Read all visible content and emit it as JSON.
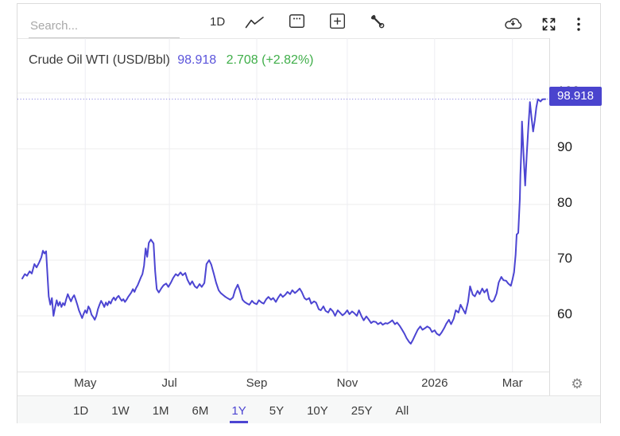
{
  "header": {
    "search_placeholder": "Search...",
    "interval_label": "1D",
    "icons": [
      "line-chart-icon",
      "calendar-icon",
      "plus-square-icon",
      "wrench-icon",
      "cloud-download-icon",
      "expand-icon",
      "kebab-menu-icon"
    ]
  },
  "title": {
    "instrument": "Crude Oil WTI (USD/Bbl)",
    "price": "98.918",
    "change": "2.708 (+2.82%)"
  },
  "price_badge": "98.918",
  "axis_icons": {
    "gear": "⚙"
  },
  "colors": {
    "accent": "#4c45d2",
    "price_text": "#5b54db",
    "change_green": "#3fae49",
    "badge_bg": "#4a44ce",
    "grid_h": "#ededed",
    "grid_v": "#ededf2",
    "dotted_price": "#7b74dd"
  },
  "ranges": {
    "items": [
      "1D",
      "1W",
      "1M",
      "6M",
      "1Y",
      "5Y",
      "10Y",
      "25Y",
      "All"
    ],
    "selected": "1Y"
  },
  "chart_data": {
    "type": "line",
    "title": "Crude Oil WTI (USD/Bbl)",
    "symbol": "Crude Oil WTI",
    "unit": "USD/Bbl",
    "last_price": 98.918,
    "change": 2.708,
    "change_pct": "+2.82%",
    "x_range": [
      "Apr 2025",
      "Mar 2026"
    ],
    "ylim": [
      50,
      110
    ],
    "grid": true,
    "legend": false,
    "y_ticks": [
      60,
      70,
      80,
      90,
      100
    ],
    "x_ticks": [
      {
        "label": "May",
        "t": 0.128
      },
      {
        "label": "Jul",
        "t": 0.287
      },
      {
        "label": "Sep",
        "t": 0.452
      },
      {
        "label": "Nov",
        "t": 0.623
      },
      {
        "label": "2026",
        "t": 0.788
      },
      {
        "label": "Mar",
        "t": 0.935
      }
    ],
    "series": [
      {
        "name": "Crude Oil WTI (USD/Bbl)",
        "points": [
          [
            0.009,
            66.7
          ],
          [
            0.014,
            67.5
          ],
          [
            0.018,
            67.2
          ],
          [
            0.023,
            68.0
          ],
          [
            0.027,
            67.6
          ],
          [
            0.032,
            69.3
          ],
          [
            0.036,
            68.7
          ],
          [
            0.041,
            69.6
          ],
          [
            0.045,
            70.5
          ],
          [
            0.048,
            71.7
          ],
          [
            0.051,
            71.2
          ],
          [
            0.054,
            71.6
          ],
          [
            0.059,
            63.5
          ],
          [
            0.062,
            62.0
          ],
          [
            0.065,
            63.2
          ],
          [
            0.068,
            60.0
          ],
          [
            0.071,
            61.5
          ],
          [
            0.074,
            62.8
          ],
          [
            0.077,
            61.8
          ],
          [
            0.08,
            62.5
          ],
          [
            0.083,
            61.6
          ],
          [
            0.086,
            62.3
          ],
          [
            0.089,
            61.9
          ],
          [
            0.092,
            63.0
          ],
          [
            0.095,
            63.9
          ],
          [
            0.098,
            63.2
          ],
          [
            0.101,
            62.6
          ],
          [
            0.104,
            63.3
          ],
          [
            0.107,
            63.7
          ],
          [
            0.11,
            62.9
          ],
          [
            0.113,
            62.0
          ],
          [
            0.116,
            61.0
          ],
          [
            0.119,
            60.3
          ],
          [
            0.122,
            59.6
          ],
          [
            0.125,
            60.4
          ],
          [
            0.128,
            61.0
          ],
          [
            0.131,
            60.5
          ],
          [
            0.134,
            61.7
          ],
          [
            0.137,
            61.2
          ],
          [
            0.14,
            60.2
          ],
          [
            0.143,
            59.8
          ],
          [
            0.146,
            59.3
          ],
          [
            0.149,
            60.0
          ],
          [
            0.152,
            61.2
          ],
          [
            0.155,
            62.0
          ],
          [
            0.158,
            62.7
          ],
          [
            0.161,
            62.2
          ],
          [
            0.164,
            61.6
          ],
          [
            0.167,
            62.4
          ],
          [
            0.17,
            61.9
          ],
          [
            0.173,
            62.6
          ],
          [
            0.176,
            62.2
          ],
          [
            0.179,
            62.9
          ],
          [
            0.182,
            63.3
          ],
          [
            0.185,
            62.8
          ],
          [
            0.188,
            63.3
          ],
          [
            0.191,
            63.6
          ],
          [
            0.194,
            63.1
          ],
          [
            0.197,
            62.7
          ],
          [
            0.2,
            63.0
          ],
          [
            0.203,
            62.5
          ],
          [
            0.206,
            62.9
          ],
          [
            0.209,
            63.4
          ],
          [
            0.212,
            63.8
          ],
          [
            0.215,
            64.2
          ],
          [
            0.218,
            64.8
          ],
          [
            0.221,
            64.3
          ],
          [
            0.224,
            65.0
          ],
          [
            0.227,
            65.5
          ],
          [
            0.23,
            66.2
          ],
          [
            0.233,
            66.9
          ],
          [
            0.236,
            67.5
          ],
          [
            0.239,
            69.0
          ],
          [
            0.242,
            72.1
          ],
          [
            0.245,
            70.6
          ],
          [
            0.248,
            73.1
          ],
          [
            0.252,
            73.7
          ],
          [
            0.257,
            73.0
          ],
          [
            0.26,
            68.0
          ],
          [
            0.263,
            64.8
          ],
          [
            0.267,
            64.2
          ],
          [
            0.272,
            65.0
          ],
          [
            0.276,
            65.5
          ],
          [
            0.281,
            65.8
          ],
          [
            0.285,
            65.2
          ],
          [
            0.29,
            66.0
          ],
          [
            0.294,
            66.8
          ],
          [
            0.299,
            67.5
          ],
          [
            0.303,
            67.2
          ],
          [
            0.308,
            67.8
          ],
          [
            0.312,
            67.3
          ],
          [
            0.317,
            67.7
          ],
          [
            0.321,
            66.5
          ],
          [
            0.326,
            65.6
          ],
          [
            0.33,
            66.2
          ],
          [
            0.335,
            65.3
          ],
          [
            0.339,
            65.0
          ],
          [
            0.344,
            65.7
          ],
          [
            0.348,
            65.2
          ],
          [
            0.353,
            65.9
          ],
          [
            0.357,
            69.3
          ],
          [
            0.362,
            70.0
          ],
          [
            0.366,
            69.2
          ],
          [
            0.371,
            67.5
          ],
          [
            0.375,
            66.0
          ],
          [
            0.38,
            64.6
          ],
          [
            0.384,
            64.1
          ],
          [
            0.389,
            63.7
          ],
          [
            0.393,
            63.4
          ],
          [
            0.398,
            63.1
          ],
          [
            0.402,
            62.9
          ],
          [
            0.407,
            63.3
          ],
          [
            0.411,
            64.6
          ],
          [
            0.416,
            65.6
          ],
          [
            0.42,
            64.6
          ],
          [
            0.425,
            62.9
          ],
          [
            0.429,
            62.5
          ],
          [
            0.434,
            62.2
          ],
          [
            0.438,
            62.0
          ],
          [
            0.443,
            62.7
          ],
          [
            0.447,
            62.3
          ],
          [
            0.452,
            62.1
          ],
          [
            0.456,
            62.8
          ],
          [
            0.461,
            62.4
          ],
          [
            0.465,
            62.2
          ],
          [
            0.47,
            63.0
          ],
          [
            0.474,
            63.4
          ],
          [
            0.479,
            62.9
          ],
          [
            0.483,
            63.2
          ],
          [
            0.488,
            62.5
          ],
          [
            0.492,
            63.2
          ],
          [
            0.497,
            63.9
          ],
          [
            0.501,
            63.4
          ],
          [
            0.506,
            63.8
          ],
          [
            0.51,
            64.3
          ],
          [
            0.515,
            63.9
          ],
          [
            0.519,
            64.6
          ],
          [
            0.524,
            64.1
          ],
          [
            0.528,
            64.4
          ],
          [
            0.533,
            64.9
          ],
          [
            0.537,
            64.3
          ],
          [
            0.542,
            63.2
          ],
          [
            0.546,
            62.9
          ],
          [
            0.551,
            63.2
          ],
          [
            0.555,
            62.2
          ],
          [
            0.56,
            62.6
          ],
          [
            0.564,
            62.4
          ],
          [
            0.569,
            61.2
          ],
          [
            0.573,
            61.0
          ],
          [
            0.578,
            61.7
          ],
          [
            0.582,
            60.9
          ],
          [
            0.587,
            60.6
          ],
          [
            0.591,
            61.3
          ],
          [
            0.596,
            60.8
          ],
          [
            0.6,
            60.0
          ],
          [
            0.605,
            61.0
          ],
          [
            0.609,
            60.6
          ],
          [
            0.614,
            60.1
          ],
          [
            0.618,
            60.4
          ],
          [
            0.623,
            61.0
          ],
          [
            0.627,
            60.3
          ],
          [
            0.632,
            60.8
          ],
          [
            0.636,
            60.5
          ],
          [
            0.641,
            60.0
          ],
          [
            0.645,
            61.0
          ],
          [
            0.65,
            59.9
          ],
          [
            0.654,
            59.2
          ],
          [
            0.659,
            59.9
          ],
          [
            0.663,
            59.4
          ],
          [
            0.668,
            58.7
          ],
          [
            0.672,
            59.0
          ],
          [
            0.677,
            58.9
          ],
          [
            0.681,
            58.5
          ],
          [
            0.686,
            58.8
          ],
          [
            0.69,
            58.4
          ],
          [
            0.695,
            58.7
          ],
          [
            0.699,
            58.6
          ],
          [
            0.704,
            58.9
          ],
          [
            0.708,
            59.2
          ],
          [
            0.713,
            58.5
          ],
          [
            0.717,
            58.8
          ],
          [
            0.722,
            58.2
          ],
          [
            0.726,
            57.6
          ],
          [
            0.731,
            56.8
          ],
          [
            0.735,
            56.0
          ],
          [
            0.74,
            55.3
          ],
          [
            0.743,
            55.0
          ],
          [
            0.747,
            55.7
          ],
          [
            0.752,
            56.7
          ],
          [
            0.756,
            57.5
          ],
          [
            0.761,
            58.1
          ],
          [
            0.765,
            57.5
          ],
          [
            0.77,
            57.8
          ],
          [
            0.774,
            58.1
          ],
          [
            0.779,
            57.8
          ],
          [
            0.783,
            57.1
          ],
          [
            0.788,
            57.4
          ],
          [
            0.792,
            56.8
          ],
          [
            0.797,
            56.5
          ],
          [
            0.801,
            57.0
          ],
          [
            0.806,
            57.8
          ],
          [
            0.81,
            58.6
          ],
          [
            0.815,
            59.3
          ],
          [
            0.819,
            58.5
          ],
          [
            0.824,
            59.5
          ],
          [
            0.828,
            61.0
          ],
          [
            0.833,
            60.6
          ],
          [
            0.837,
            62.0
          ],
          [
            0.842,
            61.1
          ],
          [
            0.846,
            60.4
          ],
          [
            0.851,
            62.5
          ],
          [
            0.855,
            65.3
          ],
          [
            0.86,
            63.8
          ],
          [
            0.864,
            63.5
          ],
          [
            0.869,
            64.5
          ],
          [
            0.873,
            63.9
          ],
          [
            0.878,
            64.9
          ],
          [
            0.882,
            64.2
          ],
          [
            0.887,
            64.8
          ],
          [
            0.891,
            63.0
          ],
          [
            0.896,
            62.5
          ],
          [
            0.9,
            62.8
          ],
          [
            0.905,
            64.0
          ],
          [
            0.909,
            66.0
          ],
          [
            0.914,
            67.0
          ],
          [
            0.918,
            66.4
          ],
          [
            0.923,
            66.3
          ],
          [
            0.927,
            65.8
          ],
          [
            0.932,
            65.4
          ],
          [
            0.935,
            66.5
          ],
          [
            0.938,
            67.8
          ],
          [
            0.941,
            71.0
          ],
          [
            0.943,
            74.6
          ],
          [
            0.946,
            74.9
          ],
          [
            0.949,
            81.0
          ],
          [
            0.95,
            85.3
          ],
          [
            0.952,
            90.3
          ],
          [
            0.953,
            94.9
          ],
          [
            0.956,
            88.9
          ],
          [
            0.959,
            83.4
          ],
          [
            0.962,
            89.0
          ],
          [
            0.965,
            93.9
          ],
          [
            0.967,
            96.7
          ],
          [
            0.968,
            98.4
          ],
          [
            0.971,
            95.6
          ],
          [
            0.974,
            93.1
          ],
          [
            0.977,
            95.0
          ],
          [
            0.98,
            97.4
          ],
          [
            0.983,
            98.9
          ],
          [
            0.988,
            98.5
          ],
          [
            0.992,
            98.9
          ],
          [
            0.997,
            98.918
          ]
        ]
      }
    ]
  }
}
